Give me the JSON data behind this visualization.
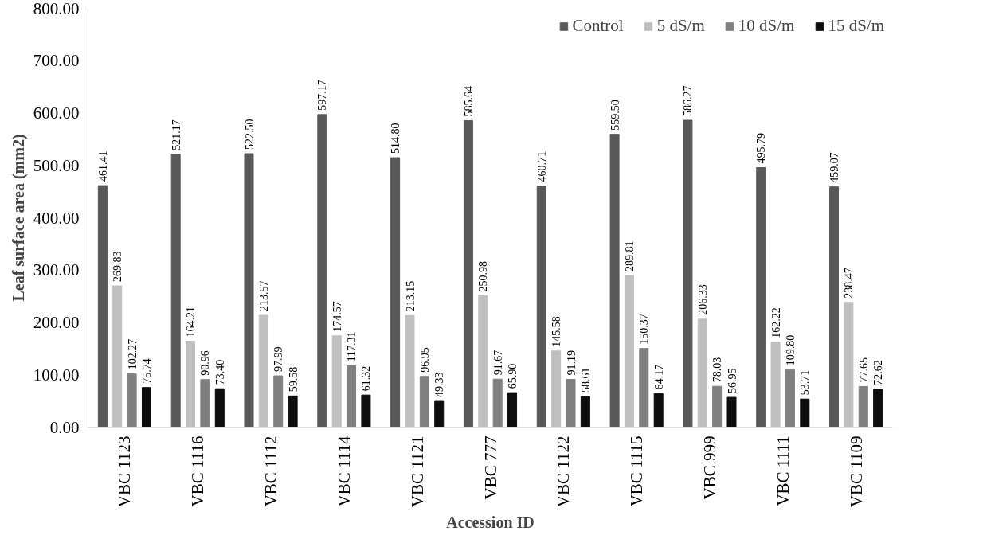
{
  "chart_data": {
    "type": "bar",
    "xlabel": "Accession ID",
    "ylabel": "Leaf surface area (mm2)",
    "categories": [
      "VBC 1123",
      "VBC 1116",
      "VBC 1112",
      "VBC 1114",
      "VBC 1121",
      "VBC 777",
      "VBC 1122",
      "VBC 1115",
      "VBC 999",
      "VBC 1111",
      "VBC 1109"
    ],
    "series": [
      {
        "name": "Control",
        "color": "#595959",
        "values": [
          461.41,
          521.17,
          522.5,
          597.17,
          514.8,
          585.64,
          460.71,
          559.5,
          586.27,
          495.79,
          459.07
        ],
        "value_labels": [
          "461.41",
          "521.17",
          "522.50",
          "597.17",
          "514.80",
          "585.64",
          "460.71",
          "559.50",
          "586.27",
          "495.79",
          "459.07"
        ]
      },
      {
        "name": "5 dS/m",
        "color": "#bfbfbf",
        "values": [
          269.83,
          164.21,
          213.57,
          174.57,
          213.15,
          250.98,
          145.58,
          289.81,
          206.33,
          162.22,
          238.47
        ],
        "value_labels": [
          "269.83",
          "164.21",
          "213.57",
          "174.57",
          "213.15",
          "250.98",
          "145.58",
          "289.81",
          "206.33",
          "162.22",
          "238.47"
        ]
      },
      {
        "name": "10 dS/m",
        "color": "#808080",
        "values": [
          102.27,
          90.96,
          97.99,
          117.31,
          96.95,
          91.67,
          91.19,
          150.37,
          78.03,
          109.8,
          77.65
        ],
        "value_labels": [
          "102.27",
          "90.96",
          "97.99",
          "117.31",
          "96.95",
          "91.67",
          "91.19",
          "150.37",
          "78.03",
          "109.80",
          "77.65"
        ]
      },
      {
        "name": "15 dS/m",
        "color": "#0d0d0d",
        "values": [
          75.74,
          73.4,
          59.58,
          61.32,
          49.33,
          65.9,
          58.61,
          64.17,
          56.95,
          53.71,
          72.62
        ],
        "value_labels": [
          "75.74",
          "73.40",
          "59.58",
          "61.32",
          "49.33",
          "65.90",
          "58.61",
          "64.17",
          "56.95",
          "53.71",
          "72.62"
        ]
      }
    ],
    "ylim": [
      0,
      800
    ],
    "yticks": [
      {
        "value": 0,
        "label": "0.00"
      },
      {
        "value": 100,
        "label": "100.00"
      },
      {
        "value": 200,
        "label": "200.00"
      },
      {
        "value": 300,
        "label": "300.00"
      },
      {
        "value": 400,
        "label": "400.00"
      },
      {
        "value": 500,
        "label": "500.00"
      },
      {
        "value": 600,
        "label": "600.00"
      },
      {
        "value": 700,
        "label": "700.00"
      },
      {
        "value": 800,
        "label": "800.00"
      }
    ],
    "grid": false,
    "legend": "top right"
  }
}
